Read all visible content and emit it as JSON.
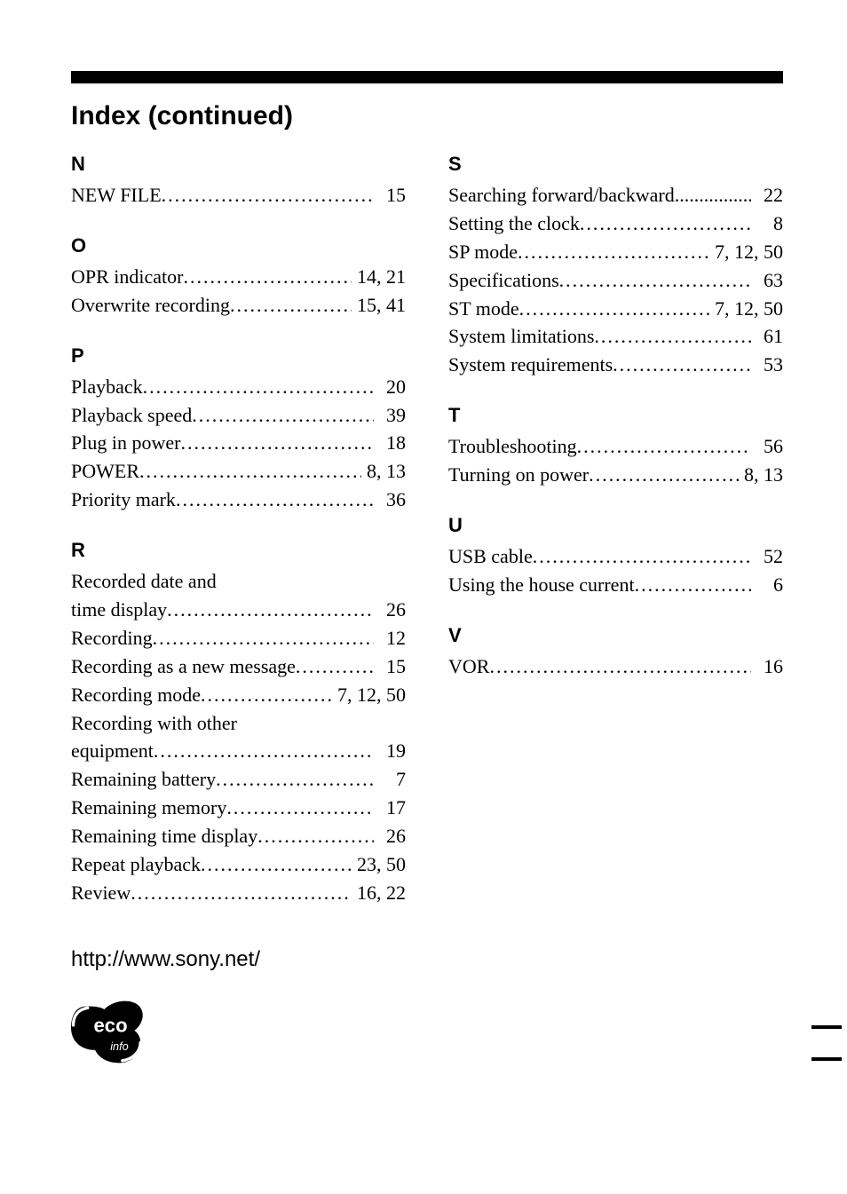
{
  "heading": "Index (continued)",
  "footer_url": "http://www.sony.net/",
  "eco_label_main": "eco",
  "eco_label_sub": "info",
  "left_sections": [
    {
      "letter": "N",
      "entries": [
        {
          "label": "NEW FILE",
          "pages": "15"
        }
      ]
    },
    {
      "letter": "O",
      "entries": [
        {
          "label": "OPR indicator",
          "pages": "14,  21"
        },
        {
          "label": "Overwrite recording",
          "pages": "15,  41"
        }
      ]
    },
    {
      "letter": "P",
      "entries": [
        {
          "label": "Playback",
          "pages": "20"
        },
        {
          "label": "Playback speed",
          "pages": "39"
        },
        {
          "label": "Plug in power",
          "pages": "18"
        },
        {
          "label": "POWER",
          "pages": "8,  13"
        },
        {
          "label": "Priority mark",
          "pages": "36"
        }
      ]
    },
    {
      "letter": "R",
      "entries": [
        {
          "label_cont": "Recorded date and"
        },
        {
          "label": "time display",
          "pages": "26"
        },
        {
          "label": "Recording",
          "pages": "12"
        },
        {
          "label": "Recording as a new message",
          "pages": "15"
        },
        {
          "label": "Recording mode",
          "pages": "7,   12, 50"
        },
        {
          "label_cont": "Recording with other"
        },
        {
          "label": "equipment",
          "pages": "19"
        },
        {
          "label": "Remaining battery",
          "pages": "7"
        },
        {
          "label": "Remaining memory",
          "pages": "17"
        },
        {
          "label": "Remaining time display",
          "pages": "26"
        },
        {
          "label": "Repeat playback",
          "pages": "23,   50"
        },
        {
          "label": "Review",
          "pages": "16,  22"
        }
      ]
    }
  ],
  "right_sections": [
    {
      "letter": "S",
      "entries": [
        {
          "label": "Searching forward/backward",
          "sep_char": ".",
          "pages": "22"
        },
        {
          "label": "Setting the clock",
          "pages": "8"
        },
        {
          "label": "SP mode",
          "pages": "7,  12,   50"
        },
        {
          "label": "Specifications",
          "pages": "63"
        },
        {
          "label": "ST mode",
          "pages": "7,  12,   50"
        },
        {
          "label": "System limitations",
          "pages": "61"
        },
        {
          "label": "System requirements",
          "pages": "53"
        }
      ]
    },
    {
      "letter": "T",
      "entries": [
        {
          "label": "Troubleshooting",
          "pages": "56"
        },
        {
          "label": "Turning on power",
          "pages": "8,  13"
        }
      ]
    },
    {
      "letter": "U",
      "entries": [
        {
          "label": "USB cable",
          "pages": "52"
        },
        {
          "label": "Using the house current",
          "pages": "6"
        }
      ]
    },
    {
      "letter": "V",
      "entries": [
        {
          "label": "VOR",
          "pages": "16"
        }
      ]
    }
  ]
}
